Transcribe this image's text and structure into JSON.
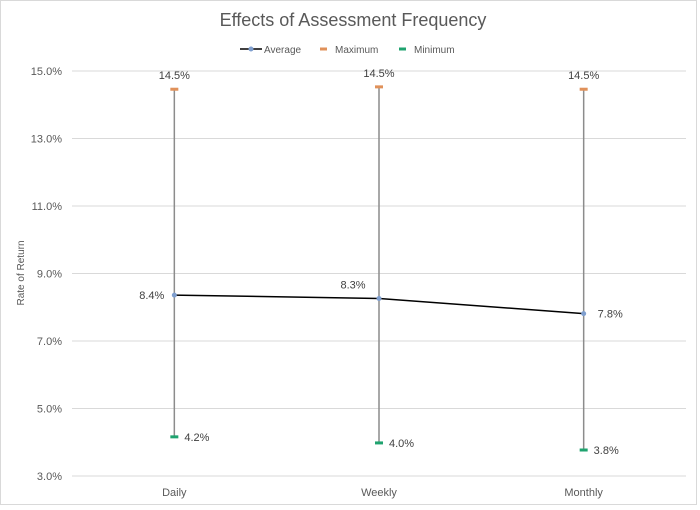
{
  "chart_data": {
    "type": "line",
    "title": "Effects of Assessment Frequency",
    "xlabel": "",
    "ylabel": "Rate of Return",
    "categories": [
      "Daily",
      "Weekly",
      "Monthly"
    ],
    "ylim": [
      3.0,
      15.0
    ],
    "yticks": [
      3.0,
      5.0,
      7.0,
      9.0,
      11.0,
      13.0,
      15.0
    ],
    "grid": true,
    "legend_position": "top",
    "series": [
      {
        "name": "Average",
        "values": [
          8.36,
          8.26,
          7.81
        ],
        "color": "#000000",
        "marker_color": "#7f9fcf"
      },
      {
        "name": "Maximum",
        "values": [
          14.46,
          14.53,
          14.46
        ],
        "color": "#e0915a"
      },
      {
        "name": "Minimum",
        "values": [
          4.16,
          3.98,
          3.77
        ],
        "color": "#1fa36f"
      }
    ],
    "error_bar_color": "#8c8c8c"
  }
}
